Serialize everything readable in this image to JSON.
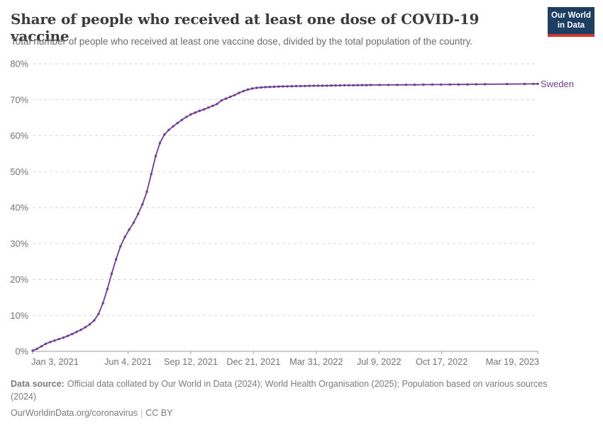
{
  "header": {
    "title": "Share of people who received at least one dose of COVID-19 vaccine",
    "subtitle": "Total number of people who received at least one vaccine dose, divided by the total population of the country.",
    "logo": {
      "line1": "Our World",
      "line2": "in Data"
    }
  },
  "theme": {
    "line_color": "#6d3e91",
    "grid_color": "#d9d9d9",
    "axis_color": "#9e9e9e",
    "tick_label_color": "#737373",
    "active_tick_label_color": "#2f2f2f",
    "logo_bg": "#1d3d63",
    "logo_stripe": "#d13832"
  },
  "chart_data": {
    "type": "line",
    "title": "Share of people who received at least one dose of COVID-19 vaccine",
    "xlabel": "",
    "ylabel": "",
    "ylim": [
      0,
      80
    ],
    "yticks": [
      0,
      10,
      20,
      30,
      40,
      50,
      60,
      70,
      80
    ],
    "ytick_suffix": "%",
    "grid": "dashed-horizontal",
    "legend_position": "end-of-line",
    "x_range": [
      "2021-01-03",
      "2023-03-19"
    ],
    "xticks": [
      {
        "label": "Jan 3, 2021",
        "date": "2021-01-03"
      },
      {
        "label": "Jun 4, 2021",
        "date": "2021-06-04"
      },
      {
        "label": "Sep 12, 2021",
        "date": "2021-09-12"
      },
      {
        "label": "Dec 21, 2021",
        "date": "2021-12-21"
      },
      {
        "label": "Mar 31, 2022",
        "date": "2022-03-31"
      },
      {
        "label": "Jul 9, 2022",
        "date": "2022-07-09"
      },
      {
        "label": "Oct 17, 2022",
        "date": "2022-10-17"
      },
      {
        "label": "Mar 19, 2023",
        "date": "2023-03-19"
      }
    ],
    "series": [
      {
        "name": "Sweden",
        "color": "#6d3e91",
        "dates": [
          "2021-01-03",
          "2021-01-10",
          "2021-01-17",
          "2021-01-24",
          "2021-01-31",
          "2021-02-07",
          "2021-02-14",
          "2021-02-21",
          "2021-02-28",
          "2021-03-07",
          "2021-03-14",
          "2021-03-21",
          "2021-03-28",
          "2021-04-04",
          "2021-04-11",
          "2021-04-18",
          "2021-04-25",
          "2021-05-02",
          "2021-05-09",
          "2021-05-16",
          "2021-05-23",
          "2021-05-30",
          "2021-06-06",
          "2021-06-13",
          "2021-06-20",
          "2021-06-27",
          "2021-07-04",
          "2021-07-11",
          "2021-07-18",
          "2021-07-25",
          "2021-08-01",
          "2021-08-08",
          "2021-08-15",
          "2021-08-22",
          "2021-08-29",
          "2021-09-05",
          "2021-09-12",
          "2021-09-19",
          "2021-09-26",
          "2021-10-03",
          "2021-10-10",
          "2021-10-17",
          "2021-10-24",
          "2021-10-31",
          "2021-11-07",
          "2021-11-14",
          "2021-11-21",
          "2021-11-28",
          "2021-12-05",
          "2021-12-12",
          "2021-12-19",
          "2021-12-26",
          "2022-01-02",
          "2022-01-09",
          "2022-01-16",
          "2022-01-23",
          "2022-01-30",
          "2022-02-06",
          "2022-02-13",
          "2022-02-20",
          "2022-02-27",
          "2022-03-06",
          "2022-03-13",
          "2022-03-20",
          "2022-03-27",
          "2022-04-03",
          "2022-04-10",
          "2022-04-17",
          "2022-04-24",
          "2022-05-01",
          "2022-05-08",
          "2022-05-15",
          "2022-05-22",
          "2022-05-29",
          "2022-06-05",
          "2022-06-12",
          "2022-06-19",
          "2022-06-26",
          "2022-07-10",
          "2022-07-24",
          "2022-08-07",
          "2022-08-21",
          "2022-09-04",
          "2022-09-18",
          "2022-10-02",
          "2022-10-16",
          "2022-10-30",
          "2022-11-13",
          "2022-11-27",
          "2022-12-11",
          "2022-12-25",
          "2023-01-29",
          "2023-02-26",
          "2023-03-12",
          "2023-03-19"
        ],
        "values": [
          0.2,
          0.7,
          1.4,
          2.1,
          2.6,
          3.0,
          3.4,
          3.8,
          4.3,
          4.8,
          5.4,
          6.0,
          6.7,
          7.5,
          8.6,
          10.4,
          13.4,
          17.3,
          21.6,
          25.6,
          29.2,
          31.8,
          33.9,
          35.8,
          38.2,
          40.9,
          44.4,
          49.3,
          54.3,
          58.0,
          60.3,
          61.6,
          62.6,
          63.5,
          64.4,
          65.2,
          65.9,
          66.4,
          66.9,
          67.3,
          67.8,
          68.3,
          68.8,
          69.8,
          70.3,
          70.8,
          71.3,
          71.9,
          72.4,
          72.8,
          73.1,
          73.3,
          73.4,
          73.5,
          73.55,
          73.6,
          73.65,
          73.7,
          73.72,
          73.75,
          73.78,
          73.8,
          73.82,
          73.85,
          73.88,
          73.9,
          73.9,
          73.92,
          73.95,
          73.95,
          73.97,
          74.0,
          74.0,
          74.0,
          74.02,
          74.05,
          74.05,
          74.08,
          74.1,
          74.1,
          74.12,
          74.15,
          74.15,
          74.18,
          74.2,
          74.2,
          74.22,
          74.25,
          74.25,
          74.28,
          74.3,
          74.35,
          74.38,
          74.4,
          74.4
        ]
      }
    ]
  },
  "footer": {
    "source_label": "Data source:",
    "source_line1": "Official data collated by Our World in Data (2024); World Health Organisation (2025); Population based on various sources",
    "source_line2": "(2024)",
    "link": "OurWorldinData.org/coronavirus",
    "separator": "|",
    "license": "CC BY"
  }
}
